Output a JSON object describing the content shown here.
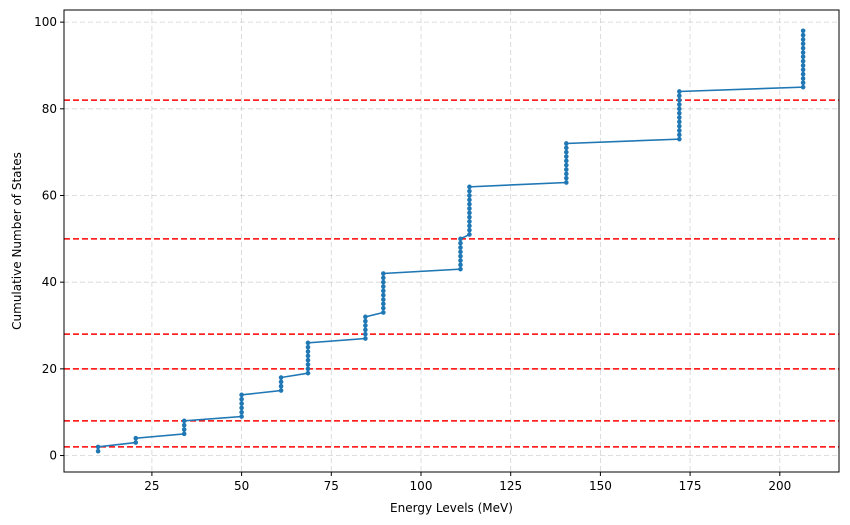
{
  "chart_data": {
    "type": "line",
    "xlabel": "Energy Levels (MeV)",
    "ylabel": "Cumulative Number of States",
    "xlim": [
      0.5,
      216.5
    ],
    "ylim": [
      -3.8,
      102.8
    ],
    "xticks": [
      25,
      50,
      75,
      100,
      125,
      150,
      175,
      200
    ],
    "yticks": [
      0,
      20,
      40,
      60,
      80,
      100
    ],
    "grid": true,
    "line_color": "#1f77b4",
    "reference_color": "#ff0000",
    "horizontal_reference_lines": [
      2,
      8,
      20,
      28,
      50,
      82
    ],
    "series": [
      {
        "shells": [
          {
            "energy": 10,
            "from": 1,
            "to": 2
          },
          {
            "energy": 20.5,
            "from": 3,
            "to": 4
          },
          {
            "energy": 34,
            "from": 5,
            "to": 8
          },
          {
            "energy": 50,
            "from": 9,
            "to": 14
          },
          {
            "energy": 61,
            "from": 15,
            "to": 18
          },
          {
            "energy": 68.5,
            "from": 19,
            "to": 26
          },
          {
            "energy": 84.5,
            "from": 27,
            "to": 32
          },
          {
            "energy": 89.5,
            "from": 33,
            "to": 42
          },
          {
            "energy": 111,
            "from": 43,
            "to": 50
          },
          {
            "energy": 113.5,
            "from": 51,
            "to": 62
          },
          {
            "energy": 140.5,
            "from": 63,
            "to": 72
          },
          {
            "energy": 172,
            "from": 73,
            "to": 84
          },
          {
            "energy": 206.5,
            "from": 85,
            "to": 98
          }
        ]
      }
    ]
  }
}
